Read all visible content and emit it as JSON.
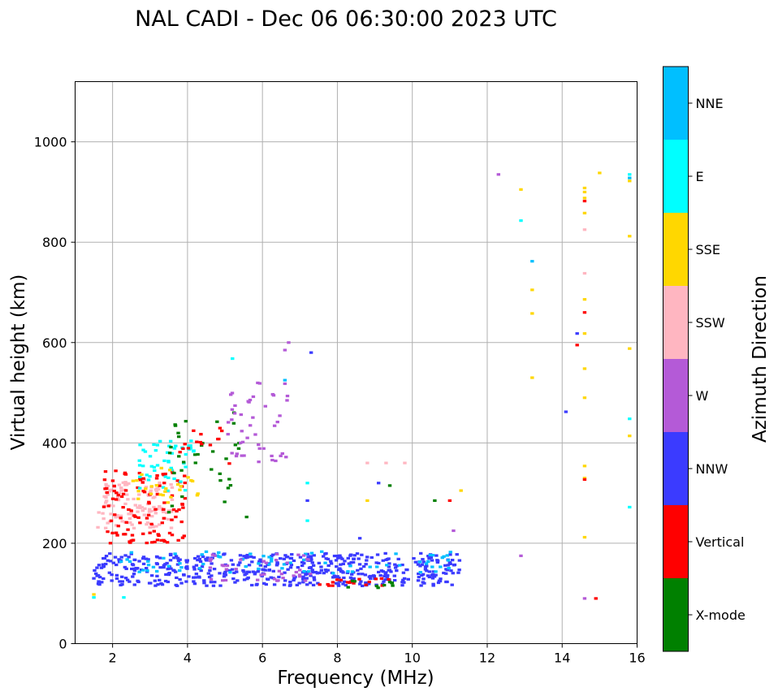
{
  "chart_data": {
    "type": "scatter",
    "title": "NAL CADI - Dec 06 06:30:00 2023 UTC",
    "xlabel": "Frequency (MHz)",
    "ylabel": "Virtual height (km)",
    "xlim": [
      1,
      16
    ],
    "ylim": [
      0,
      1120
    ],
    "xticks": [
      "2",
      "4",
      "6",
      "8",
      "10",
      "12",
      "14",
      "16"
    ],
    "yticks": [
      "0",
      "200",
      "400",
      "600",
      "800",
      "1000"
    ],
    "grid": true,
    "colorbar": {
      "label": "Azimuth Direction",
      "categories": [
        {
          "name": "X-mode",
          "color": "#008000"
        },
        {
          "name": "Vertical",
          "color": "#ff0000"
        },
        {
          "name": "NNW",
          "color": "#3b3bff"
        },
        {
          "name": "W",
          "color": "#b45ad7"
        },
        {
          "name": "SSW",
          "color": "#ffb6c1"
        },
        {
          "name": "SSE",
          "color": "#ffd700"
        },
        {
          "name": "E",
          "color": "#00ffff"
        },
        {
          "name": "NNE",
          "color": "#00bfff"
        }
      ]
    },
    "clusters": [
      {
        "cat": "NNW",
        "x": [
          1.5,
          11.3
        ],
        "y": [
          115,
          180
        ],
        "n": 520
      },
      {
        "cat": "NNE",
        "x": [
          2.2,
          11.3
        ],
        "y": [
          140,
          185
        ],
        "n": 70
      },
      {
        "cat": "W",
        "x": [
          4.5,
          7.5
        ],
        "y": [
          125,
          180
        ],
        "n": 40
      },
      {
        "cat": "Vertical",
        "x": [
          7.5,
          9.5
        ],
        "y": [
          115,
          130
        ],
        "n": 18
      },
      {
        "cat": "X-mode",
        "x": [
          8.0,
          9.5
        ],
        "y": [
          110,
          125
        ],
        "n": 10
      },
      {
        "cat": "SSW",
        "x": [
          1.6,
          3.6
        ],
        "y": [
          230,
          330
        ],
        "n": 120
      },
      {
        "cat": "Vertical",
        "x": [
          1.7,
          4.0
        ],
        "y": [
          200,
          345
        ],
        "n": 110
      },
      {
        "cat": "E",
        "x": [
          2.7,
          4.2
        ],
        "y": [
          300,
          410
        ],
        "n": 50
      },
      {
        "cat": "SSE",
        "x": [
          2.5,
          4.3
        ],
        "y": [
          280,
          350
        ],
        "n": 25
      },
      {
        "cat": "X-mode",
        "x": [
          3.5,
          5.6
        ],
        "y": [
          230,
          470
        ],
        "n": 35
      },
      {
        "cat": "W",
        "x": [
          5.0,
          6.7
        ],
        "y": [
          360,
          520
        ],
        "n": 45
      },
      {
        "cat": "Vertical",
        "x": [
          3.8,
          5.2
        ],
        "y": [
          340,
          430
        ],
        "n": 15
      }
    ],
    "points": [
      {
        "x": 1.5,
        "y": 98,
        "cat": "SSE"
      },
      {
        "x": 1.5,
        "y": 92,
        "cat": "E"
      },
      {
        "x": 2.3,
        "y": 92,
        "cat": "E"
      },
      {
        "x": 1.5,
        "y": 130,
        "cat": "NNW"
      },
      {
        "x": 6.7,
        "y": 600,
        "cat": "W"
      },
      {
        "x": 6.6,
        "y": 585,
        "cat": "W"
      },
      {
        "x": 7.3,
        "y": 580,
        "cat": "NNW"
      },
      {
        "x": 5.2,
        "y": 568,
        "cat": "E"
      },
      {
        "x": 6.6,
        "y": 525,
        "cat": "NNE"
      },
      {
        "x": 6.6,
        "y": 518,
        "cat": "W"
      },
      {
        "x": 7.2,
        "y": 320,
        "cat": "E"
      },
      {
        "x": 7.2,
        "y": 285,
        "cat": "NNW"
      },
      {
        "x": 7.2,
        "y": 245,
        "cat": "E"
      },
      {
        "x": 8.8,
        "y": 360,
        "cat": "SSW"
      },
      {
        "x": 9.3,
        "y": 360,
        "cat": "SSW"
      },
      {
        "x": 9.8,
        "y": 360,
        "cat": "SSW"
      },
      {
        "x": 9.1,
        "y": 320,
        "cat": "NNW"
      },
      {
        "x": 9.4,
        "y": 315,
        "cat": "X-mode"
      },
      {
        "x": 8.8,
        "y": 285,
        "cat": "SSE"
      },
      {
        "x": 8.6,
        "y": 210,
        "cat": "NNW"
      },
      {
        "x": 10.6,
        "y": 285,
        "cat": "X-mode"
      },
      {
        "x": 11.0,
        "y": 285,
        "cat": "Vertical"
      },
      {
        "x": 11.3,
        "y": 305,
        "cat": "SSE"
      },
      {
        "x": 11.1,
        "y": 225,
        "cat": "W"
      },
      {
        "x": 12.3,
        "y": 935,
        "cat": "W"
      },
      {
        "x": 12.9,
        "y": 905,
        "cat": "SSE"
      },
      {
        "x": 12.9,
        "y": 843,
        "cat": "E"
      },
      {
        "x": 13.2,
        "y": 762,
        "cat": "NNE"
      },
      {
        "x": 13.2,
        "y": 705,
        "cat": "SSE"
      },
      {
        "x": 13.2,
        "y": 658,
        "cat": "SSE"
      },
      {
        "x": 13.2,
        "y": 530,
        "cat": "SSE"
      },
      {
        "x": 12.9,
        "y": 175,
        "cat": "W"
      },
      {
        "x": 14.6,
        "y": 908,
        "cat": "SSE"
      },
      {
        "x": 14.6,
        "y": 900,
        "cat": "SSE"
      },
      {
        "x": 14.6,
        "y": 888,
        "cat": "SSE"
      },
      {
        "x": 14.6,
        "y": 882,
        "cat": "Vertical"
      },
      {
        "x": 14.6,
        "y": 858,
        "cat": "SSE"
      },
      {
        "x": 14.6,
        "y": 825,
        "cat": "SSW"
      },
      {
        "x": 14.6,
        "y": 738,
        "cat": "SSW"
      },
      {
        "x": 14.6,
        "y": 686,
        "cat": "SSE"
      },
      {
        "x": 14.6,
        "y": 660,
        "cat": "Vertical"
      },
      {
        "x": 14.6,
        "y": 618,
        "cat": "SSE"
      },
      {
        "x": 14.4,
        "y": 618,
        "cat": "NNW"
      },
      {
        "x": 14.4,
        "y": 595,
        "cat": "Vertical"
      },
      {
        "x": 14.6,
        "y": 548,
        "cat": "SSE"
      },
      {
        "x": 14.6,
        "y": 490,
        "cat": "SSE"
      },
      {
        "x": 14.1,
        "y": 462,
        "cat": "NNW"
      },
      {
        "x": 14.6,
        "y": 354,
        "cat": "SSE"
      },
      {
        "x": 14.6,
        "y": 330,
        "cat": "SSE"
      },
      {
        "x": 14.6,
        "y": 327,
        "cat": "Vertical"
      },
      {
        "x": 14.6,
        "y": 212,
        "cat": "SSE"
      },
      {
        "x": 14.6,
        "y": 90,
        "cat": "W"
      },
      {
        "x": 14.9,
        "y": 90,
        "cat": "Vertical"
      },
      {
        "x": 15.0,
        "y": 938,
        "cat": "SSE"
      },
      {
        "x": 15.8,
        "y": 935,
        "cat": "E"
      },
      {
        "x": 15.8,
        "y": 928,
        "cat": "NNE"
      },
      {
        "x": 15.8,
        "y": 922,
        "cat": "SSE"
      },
      {
        "x": 15.8,
        "y": 812,
        "cat": "SSE"
      },
      {
        "x": 15.8,
        "y": 588,
        "cat": "SSE"
      },
      {
        "x": 15.8,
        "y": 448,
        "cat": "E"
      },
      {
        "x": 15.8,
        "y": 414,
        "cat": "SSE"
      },
      {
        "x": 15.8,
        "y": 272,
        "cat": "E"
      }
    ]
  }
}
